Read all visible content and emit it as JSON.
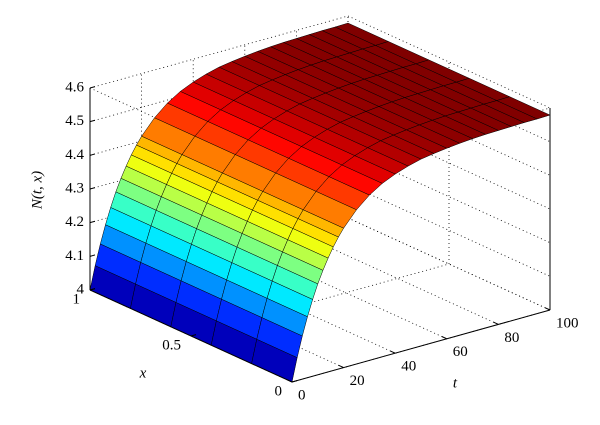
{
  "chart_data": {
    "type": "surface",
    "zlabel": "N(t, x)",
    "xlabel": "x",
    "tlabel": "t",
    "colormap": "jet",
    "grid": true,
    "edge_color": "#000000",
    "xlim": [
      0,
      1
    ],
    "xticks": [
      0,
      0.5,
      1
    ],
    "tlim": [
      0,
      100
    ],
    "tticks": [
      0,
      20,
      40,
      60,
      80,
      100
    ],
    "zlim": [
      4,
      4.6
    ],
    "zticks": [
      4,
      4.1,
      4.2,
      4.3,
      4.4,
      4.5,
      4.6
    ],
    "x": [
      0,
      0.2,
      0.4,
      0.6,
      0.8,
      1
    ],
    "t": [
      0,
      2,
      4,
      6,
      8,
      10,
      12,
      14,
      16,
      18,
      20,
      25,
      30,
      35,
      40,
      45,
      50,
      55,
      60,
      65,
      70,
      75,
      80,
      85,
      90,
      95,
      100
    ],
    "z": [
      [
        4.0,
        4.0,
        4.0,
        4.0,
        4.0,
        4.0
      ],
      [
        4.068,
        4.068,
        4.068,
        4.068,
        4.068,
        4.068
      ],
      [
        4.128,
        4.128,
        4.128,
        4.128,
        4.128,
        4.128
      ],
      [
        4.181,
        4.181,
        4.181,
        4.181,
        4.181,
        4.181
      ],
      [
        4.228,
        4.228,
        4.228,
        4.228,
        4.228,
        4.228
      ],
      [
        4.27,
        4.27,
        4.27,
        4.27,
        4.27,
        4.27
      ],
      [
        4.306,
        4.306,
        4.306,
        4.306,
        4.306,
        4.306
      ],
      [
        4.338,
        4.338,
        4.338,
        4.338,
        4.338,
        4.338
      ],
      [
        4.367,
        4.367,
        4.367,
        4.367,
        4.367,
        4.367
      ],
      [
        4.392,
        4.392,
        4.392,
        4.392,
        4.392,
        4.392
      ],
      [
        4.414,
        4.414,
        4.414,
        4.414,
        4.414,
        4.414
      ],
      [
        4.458,
        4.458,
        4.458,
        4.458,
        4.458,
        4.458
      ],
      [
        4.491,
        4.491,
        4.491,
        4.491,
        4.491,
        4.491
      ],
      [
        4.515,
        4.515,
        4.515,
        4.515,
        4.515,
        4.515
      ],
      [
        4.532,
        4.532,
        4.532,
        4.532,
        4.532,
        4.532
      ],
      [
        4.545,
        4.545,
        4.545,
        4.545,
        4.545,
        4.545
      ],
      [
        4.555,
        4.555,
        4.555,
        4.555,
        4.555,
        4.555
      ],
      [
        4.561,
        4.561,
        4.561,
        4.561,
        4.561,
        4.561
      ],
      [
        4.566,
        4.566,
        4.566,
        4.566,
        4.566,
        4.566
      ],
      [
        4.57,
        4.57,
        4.57,
        4.57,
        4.57,
        4.57
      ],
      [
        4.573,
        4.573,
        4.573,
        4.573,
        4.573,
        4.573
      ],
      [
        4.575,
        4.575,
        4.575,
        4.575,
        4.575,
        4.575
      ],
      [
        4.576,
        4.576,
        4.576,
        4.576,
        4.576,
        4.576
      ],
      [
        4.577,
        4.577,
        4.577,
        4.577,
        4.577,
        4.577
      ],
      [
        4.578,
        4.578,
        4.578,
        4.578,
        4.578,
        4.578
      ],
      [
        4.578,
        4.578,
        4.578,
        4.578,
        4.578,
        4.578
      ],
      [
        4.579,
        4.579,
        4.579,
        4.579,
        4.579,
        4.579
      ]
    ]
  }
}
